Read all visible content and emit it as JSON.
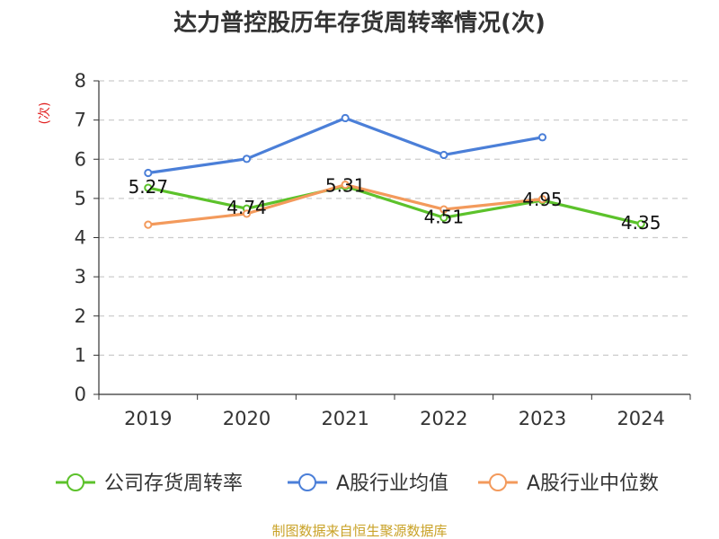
{
  "chart_data": {
    "type": "line",
    "title": "达力普控股历年存货周转率情况(次)",
    "ylabel": "(次)",
    "xlabel": "",
    "categories": [
      "2019",
      "2020",
      "2021",
      "2022",
      "2023",
      "2024"
    ],
    "ylim": [
      0,
      8
    ],
    "yticks": [
      0,
      1,
      2,
      3,
      4,
      5,
      6,
      7,
      8
    ],
    "grid": true,
    "legend_position": "bottom",
    "series": [
      {
        "name": "公司存货周转率",
        "color": "#5cc22b",
        "values": [
          5.27,
          4.74,
          5.31,
          4.51,
          4.95,
          4.35
        ],
        "labels": [
          "5.27",
          "4.74",
          "5.31",
          "4.51",
          "4.95",
          "4.35"
        ]
      },
      {
        "name": "A股行业均值",
        "color": "#4b7fd8",
        "values": [
          5.65,
          6.01,
          7.05,
          6.11,
          6.56,
          null
        ],
        "labels": []
      },
      {
        "name": "A股行业中位数",
        "color": "#f39a5c",
        "values": [
          4.33,
          4.61,
          5.35,
          4.72,
          4.98,
          null
        ],
        "labels": []
      }
    ]
  },
  "footer": {
    "source": "制图数据来自恒生聚源数据库",
    "color": "#c9a227"
  }
}
